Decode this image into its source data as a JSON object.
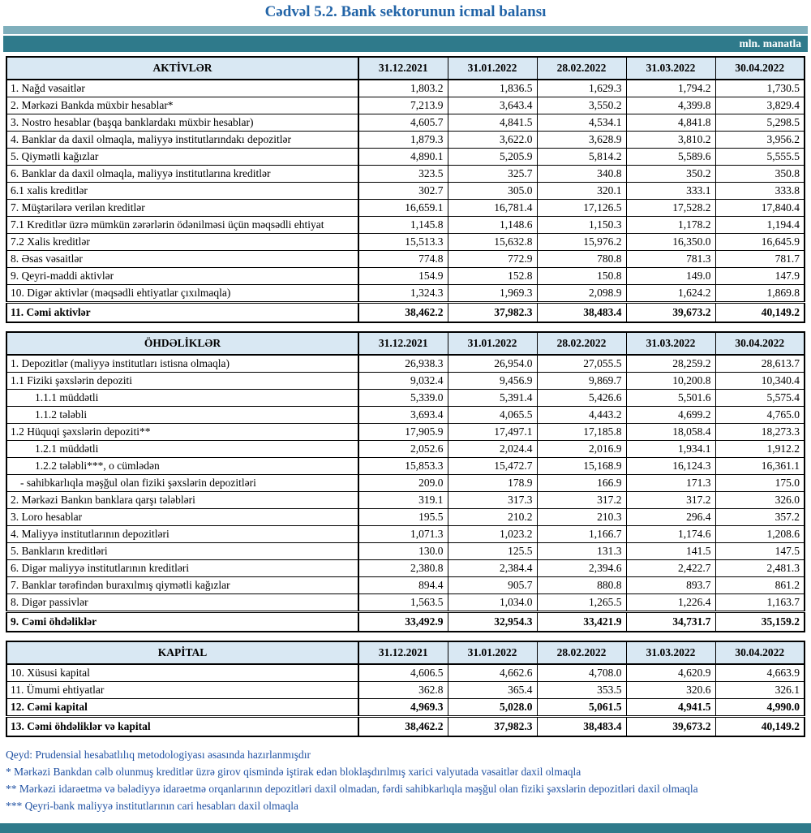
{
  "title": "Cədvəl 5.2. Bank sektorunun icmal balansı",
  "unit_label": "mln. manatla",
  "colors": {
    "title_blue": "#2264A7",
    "strip_light_teal": "#7FAFBC",
    "strip_dark_teal": "#2F7A8B",
    "header_row_bg": "#D9E8F3",
    "footnote_blue": "#2152A3"
  },
  "columns": [
    "31.12.2021",
    "31.01.2022",
    "28.02.2022",
    "31.03.2022",
    "30.04.2022"
  ],
  "sections": [
    {
      "id": "aktivler",
      "header": "AKTİVLƏR",
      "rows": [
        {
          "label": "1. Nağd vəsaitlər",
          "values": [
            "1,803.2",
            "1,836.5",
            "1,629.3",
            "1,794.2",
            "1,730.5"
          ]
        },
        {
          "label": "2. Mərkəzi Bankda müxbir hesablar*",
          "values": [
            "7,213.9",
            "3,643.4",
            "3,550.2",
            "4,399.8",
            "3,829.4"
          ]
        },
        {
          "label": "3. Nostro hesablar (başqa banklardakı müxbir hesablar)",
          "values": [
            "4,605.7",
            "4,841.5",
            "4,534.1",
            "4,841.8",
            "5,298.5"
          ]
        },
        {
          "label": "4. Banklar da daxil olmaqla, maliyyə institutlarındakı depozitlər",
          "values": [
            "1,879.3",
            "3,622.0",
            "3,628.9",
            "3,810.2",
            "3,956.2"
          ]
        },
        {
          "label": "5. Qiymətli kağızlar",
          "values": [
            "4,890.1",
            "5,205.9",
            "5,814.2",
            "5,589.6",
            "5,555.5"
          ]
        },
        {
          "label": "6. Banklar da daxil olmaqla, maliyyə institutlarına kreditlər",
          "values": [
            "323.5",
            "325.7",
            "340.8",
            "350.2",
            "350.8"
          ]
        },
        {
          "label": "6.1 xalis kreditlər",
          "values": [
            "302.7",
            "305.0",
            "320.1",
            "333.1",
            "333.8"
          ]
        },
        {
          "label": "7. Müştərilərə verilən kreditlər",
          "values": [
            "16,659.1",
            "16,781.4",
            "17,126.5",
            "17,528.2",
            "17,840.4"
          ]
        },
        {
          "label": "7.1 Kreditlər üzrə mümkün zərərlərin ödənilməsi üçün məqsədli ehtiyat",
          "values": [
            "1,145.8",
            "1,148.6",
            "1,150.3",
            "1,178.2",
            "1,194.4"
          ]
        },
        {
          "label": "7.2 Xalis kreditlər",
          "values": [
            "15,513.3",
            "15,632.8",
            "15,976.2",
            "16,350.0",
            "16,645.9"
          ]
        },
        {
          "label": "8.  Əsas vəsaitlər",
          "values": [
            "774.8",
            "772.9",
            "780.8",
            "781.3",
            "781.7"
          ]
        },
        {
          "label": "9. Qeyri-maddi aktivlər",
          "values": [
            "154.9",
            "152.8",
            "150.8",
            "149.0",
            "147.9"
          ]
        },
        {
          "label": "10. Digər aktivlər (məqsədli ehtiyatlar çıxılmaqla)",
          "values": [
            "1,324.3",
            "1,969.3",
            "2,098.9",
            "1,624.2",
            "1,869.8"
          ]
        },
        {
          "label": "11. Cəmi aktivlər",
          "bold": true,
          "total": true,
          "values": [
            "38,462.2",
            "37,982.3",
            "38,483.4",
            "39,673.2",
            "40,149.2"
          ]
        }
      ]
    },
    {
      "id": "ohdelikler",
      "header": "ÖHDƏLİKLƏR",
      "rows": [
        {
          "label": "1. Depozitlər (maliyyə institutları istisna olmaqla)",
          "values": [
            "26,938.3",
            "26,954.0",
            "27,055.5",
            "28,259.2",
            "28,613.7"
          ]
        },
        {
          "label": "1.1 Fiziki şəxslərin depoziti",
          "values": [
            "9,032.4",
            "9,456.9",
            "9,869.7",
            "10,200.8",
            "10,340.4"
          ]
        },
        {
          "label": "1.1.1 müddətli",
          "indent": 1,
          "values": [
            "5,339.0",
            "5,391.4",
            "5,426.6",
            "5,501.6",
            "5,575.4"
          ]
        },
        {
          "label": "1.1.2 tələbli",
          "indent": 1,
          "values": [
            "3,693.4",
            "4,065.5",
            "4,443.2",
            "4,699.2",
            "4,765.0"
          ]
        },
        {
          "label": "1.2 Hüquqi şəxslərin depoziti**",
          "values": [
            "17,905.9",
            "17,497.1",
            "17,185.8",
            "18,058.4",
            "18,273.3"
          ]
        },
        {
          "label": "1.2.1 müddətli",
          "indent": 1,
          "values": [
            "2,052.6",
            "2,024.4",
            "2,016.9",
            "1,934.1",
            "1,912.2"
          ]
        },
        {
          "label": "1.2.2 tələbli***, o cümlədən",
          "indent": 1,
          "values": [
            "15,853.3",
            "15,472.7",
            "15,168.9",
            "16,124.3",
            "16,361.1"
          ]
        },
        {
          "label": "- sahibkarlıqla məşğul olan fiziki şəxslərin depozitləri",
          "indent": 2,
          "values": [
            "209.0",
            "178.9",
            "166.9",
            "171.3",
            "175.0"
          ]
        },
        {
          "label": "2. Mərkəzi Bankın banklara qarşı tələbləri",
          "values": [
            "319.1",
            "317.3",
            "317.2",
            "317.2",
            "326.0"
          ]
        },
        {
          "label": "3. Loro hesablar",
          "values": [
            "195.5",
            "210.2",
            "210.3",
            "296.4",
            "357.2"
          ]
        },
        {
          "label": "4. Maliyyə institutlarının  depozitləri",
          "values": [
            "1,071.3",
            "1,023.2",
            "1,166.7",
            "1,174.6",
            "1,208.6"
          ]
        },
        {
          "label": "5. Bankların kreditləri",
          "values": [
            "130.0",
            "125.5",
            "131.3",
            "141.5",
            "147.5"
          ]
        },
        {
          "label": "6. Digər maliyyə institutlarının kreditləri",
          "values": [
            "2,380.8",
            "2,384.4",
            "2,394.6",
            "2,422.7",
            "2,481.3"
          ]
        },
        {
          "label": "7. Banklar tərəfindən buraxılmış qiymətli kağızlar",
          "values": [
            "894.4",
            "905.7",
            "880.8",
            "893.7",
            "861.2"
          ]
        },
        {
          "label": "8. Digər passivlər",
          "values": [
            "1,563.5",
            "1,034.0",
            "1,265.5",
            "1,226.4",
            "1,163.7"
          ]
        },
        {
          "label": " 9. Cəmi öhdəliklər",
          "bold": true,
          "total": true,
          "values": [
            "33,492.9",
            "32,954.3",
            "33,421.9",
            "34,731.7",
            "35,159.2"
          ]
        }
      ]
    },
    {
      "id": "kapital",
      "header": "KAPİTAL",
      "rows": [
        {
          "label": "10. Xüsusi kapital",
          "values": [
            "4,606.5",
            "4,662.6",
            "4,708.0",
            "4,620.9",
            "4,663.9"
          ]
        },
        {
          "label": "11. Ümumi ehtiyatlar",
          "values": [
            "362.8",
            "365.4",
            "353.5",
            "320.6",
            "326.1"
          ]
        },
        {
          "label": "12. Cəmi kapital",
          "bold": true,
          "values": [
            "4,969.3",
            "5,028.0",
            "5,061.5",
            "4,941.5",
            "4,990.0"
          ]
        },
        {
          "label": "13. Cəmi öhdəliklər və kapital",
          "bold": true,
          "total": true,
          "values": [
            "38,462.2",
            "37,982.3",
            "38,483.4",
            "39,673.2",
            "40,149.2"
          ]
        }
      ]
    }
  ],
  "footnotes": [
    "Qeyd: Prudensial hesabatlılıq metodologiyası əsasında hazırlanmışdır",
    "* Mərkəzi Bankdan cəlb olunmuş kreditlər üzrə girov qismində iştirak edən bloklaşdırılmış xarici valyutada vəsaitlər daxil olmaqla",
    "** Mərkəzi idarəetmə və bələdiyyə idarəetmə orqanlarının depozitləri daxil olmadan, fərdi sahibkarlıqla məşğul olan fiziki şəxslərin depozitləri daxil olmaqla",
    "*** Qeyri-bank maliyyə institutlarının cari hesabları daxil olmaqla"
  ]
}
